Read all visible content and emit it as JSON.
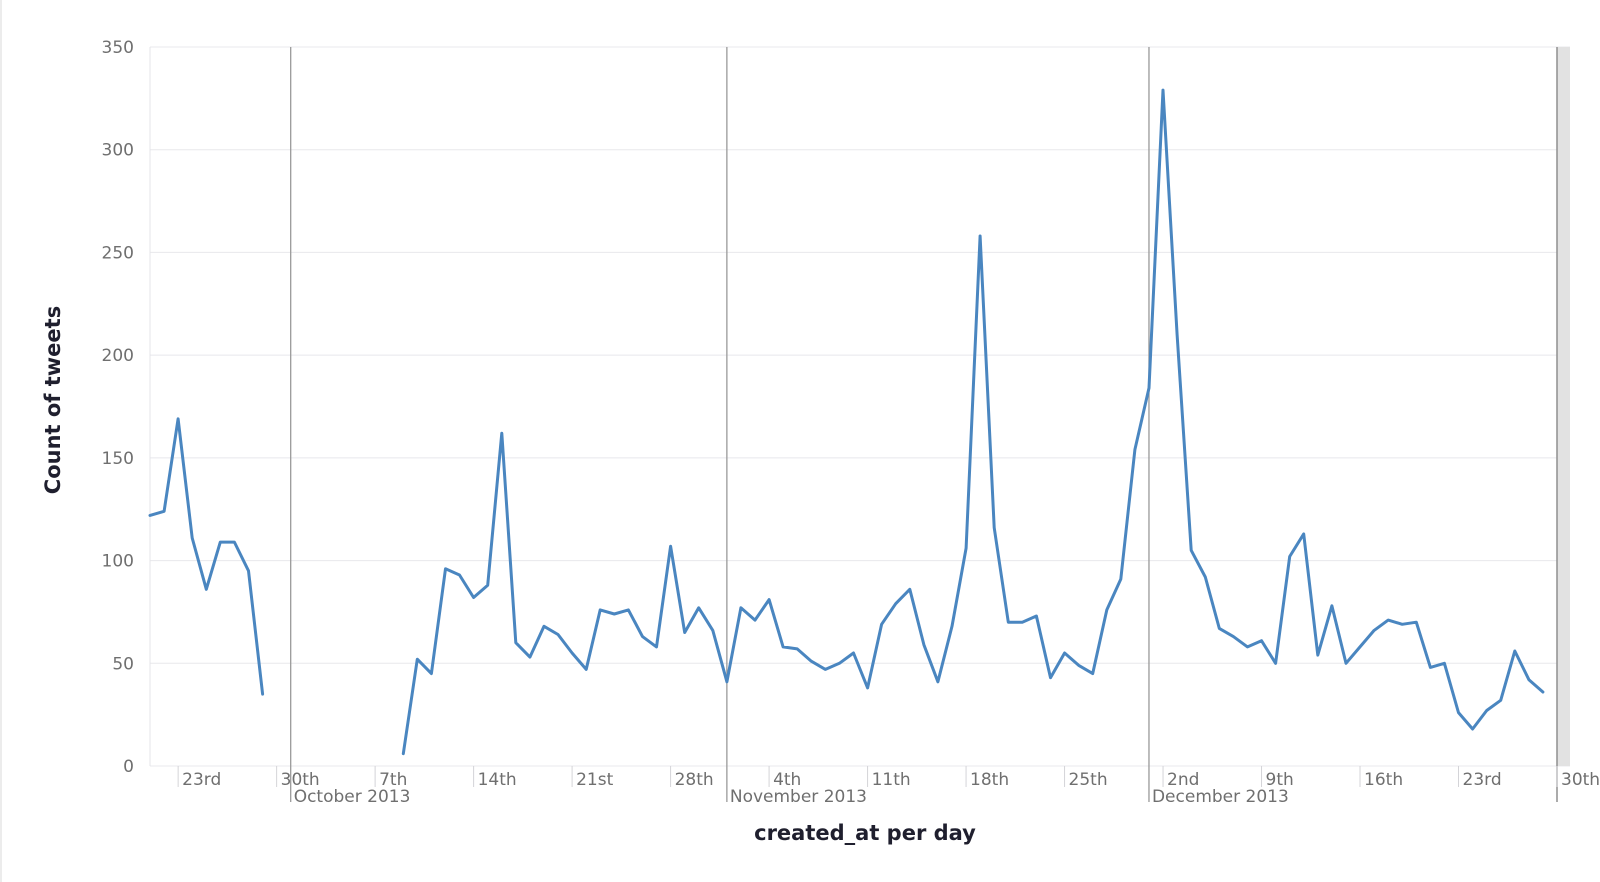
{
  "chart_data": {
    "type": "line",
    "xlabel": "created_at per day",
    "ylabel": "Count of tweets",
    "ylim": [
      0,
      350
    ],
    "y_ticks": [
      0,
      50,
      100,
      150,
      200,
      250,
      300,
      350
    ],
    "x_range": [
      "2013-09-21",
      "2013-12-30"
    ],
    "grid": true,
    "line_color": "#4a86c0",
    "day_ticks": [
      {
        "date": "2013-09-23",
        "label": "23rd"
      },
      {
        "date": "2013-09-30",
        "label": "30th"
      },
      {
        "date": "2013-10-07",
        "label": "7th"
      },
      {
        "date": "2013-10-14",
        "label": "14th"
      },
      {
        "date": "2013-10-21",
        "label": "21st"
      },
      {
        "date": "2013-10-28",
        "label": "28th"
      },
      {
        "date": "2013-11-04",
        "label": "4th"
      },
      {
        "date": "2013-11-11",
        "label": "11th"
      },
      {
        "date": "2013-11-18",
        "label": "18th"
      },
      {
        "date": "2013-11-25",
        "label": "25th"
      },
      {
        "date": "2013-12-02",
        "label": "2nd"
      },
      {
        "date": "2013-12-09",
        "label": "9th"
      },
      {
        "date": "2013-12-16",
        "label": "16th"
      },
      {
        "date": "2013-12-23",
        "label": "23rd"
      },
      {
        "date": "2013-12-30",
        "label": "30th"
      }
    ],
    "month_ticks": [
      {
        "date": "2013-10-01",
        "label": "October 2013"
      },
      {
        "date": "2013-11-01",
        "label": "November 2013"
      },
      {
        "date": "2013-12-01",
        "label": "December 2013"
      }
    ],
    "series": [
      {
        "segments": [
          {
            "start": "2013-09-21",
            "values": [
              122,
              124,
              169,
              111,
              86,
              109,
              109,
              95,
              35
            ]
          },
          {
            "start": "2013-10-09",
            "values": [
              6,
              52,
              45,
              96,
              93,
              82,
              88,
              162,
              60,
              53,
              68,
              64,
              55,
              47,
              76,
              74,
              76,
              63,
              58,
              107,
              65,
              77,
              66,
              41,
              77,
              71,
              81,
              58,
              57,
              51,
              47,
              50,
              55,
              38,
              69,
              79,
              86,
              59,
              41,
              68,
              106,
              258,
              116,
              70,
              70,
              73,
              43,
              55,
              49,
              45,
              76,
              91,
              154,
              184,
              329,
              210,
              105,
              92,
              67,
              63,
              58,
              61,
              50,
              102,
              113,
              54,
              78,
              50,
              58,
              66,
              71,
              69,
              70,
              48,
              50,
              26,
              18,
              27,
              32,
              56,
              42,
              36
            ]
          }
        ]
      }
    ]
  }
}
